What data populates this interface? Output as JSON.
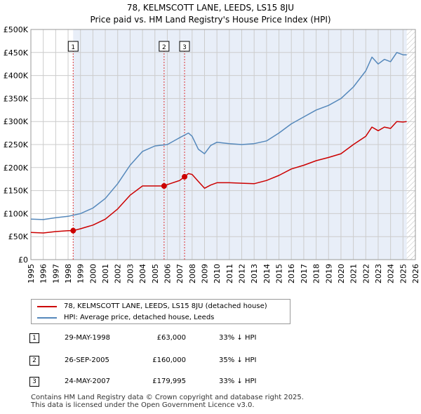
{
  "header": {
    "title": "78, KELMSCOTT LANE, LEEDS, LS15 8JU",
    "subtitle": "Price paid vs. HM Land Registry's House Price Index (HPI)"
  },
  "legend": {
    "property_label": "78, KELMSCOTT LANE, LEEDS, LS15 8JU (detached house)",
    "hpi_label": "HPI: Average price, detached house, Leeds"
  },
  "transactions": [
    {
      "num": "1",
      "date": "29-MAY-1998",
      "price": "£63,000",
      "diff": "33% ↓ HPI"
    },
    {
      "num": "2",
      "date": "26-SEP-2005",
      "price": "£160,000",
      "diff": "35% ↓ HPI"
    },
    {
      "num": "3",
      "date": "24-MAY-2007",
      "price": "£179,995",
      "diff": "33% ↓ HPI"
    }
  ],
  "footer": {
    "line1": "Contains HM Land Registry data © Crown copyright and database right 2025.",
    "line2": "This data is licensed under the Open Government Licence v3.0."
  },
  "colors": {
    "property": "#cc0000",
    "hpi": "#5588bb",
    "shade": "#e8eef8",
    "grid": "#cccccc",
    "marker_line": "#dd3333"
  },
  "chart_data": {
    "type": "line",
    "xlim": [
      1995,
      2026
    ],
    "ylim": [
      0,
      500000
    ],
    "x_ticks": [
      "1995",
      "1996",
      "1997",
      "1998",
      "1999",
      "2000",
      "2001",
      "2002",
      "2003",
      "2004",
      "2005",
      "2006",
      "2007",
      "2008",
      "2009",
      "2010",
      "2011",
      "2012",
      "2013",
      "2014",
      "2015",
      "2016",
      "2017",
      "2018",
      "2019",
      "2020",
      "2021",
      "2022",
      "2023",
      "2024",
      "2025",
      "2026"
    ],
    "y_ticks": [
      {
        "value": 0,
        "label": "£0"
      },
      {
        "value": 50000,
        "label": "£50K"
      },
      {
        "value": 100000,
        "label": "£100K"
      },
      {
        "value": 150000,
        "label": "£150K"
      },
      {
        "value": 200000,
        "label": "£200K"
      },
      {
        "value": 250000,
        "label": "£250K"
      },
      {
        "value": 300000,
        "label": "£300K"
      },
      {
        "value": 350000,
        "label": "£350K"
      },
      {
        "value": 400000,
        "label": "£400K"
      },
      {
        "value": 450000,
        "label": "£450K"
      },
      {
        "value": 500000,
        "label": "£500K"
      }
    ],
    "shaded_range": [
      1998.41,
      2025.3
    ],
    "hatched_from": 2025.3,
    "sales": [
      {
        "label": "1",
        "x": 1998.41,
        "y": 63000
      },
      {
        "label": "2",
        "x": 2005.74,
        "y": 160000
      },
      {
        "label": "3",
        "x": 2007.39,
        "y": 179995
      }
    ],
    "series": [
      {
        "name": "78, KELMSCOTT LANE, LEEDS, LS15 8JU (detached house)",
        "x": [
          1995,
          1996,
          1997,
          1998,
          1998.41,
          1999,
          2000,
          2001,
          2002,
          2003,
          2004,
          2005,
          2005.74,
          2006,
          2007,
          2007.39,
          2007.7,
          2008,
          2008.5,
          2009,
          2009.5,
          2010,
          2011,
          2012,
          2013,
          2014,
          2015,
          2016,
          2017,
          2018,
          2019,
          2020,
          2021,
          2022,
          2022.5,
          2023,
          2023.5,
          2024,
          2024.5,
          2025,
          2025.3
        ],
        "y": [
          59000,
          58000,
          61000,
          63000,
          63000,
          67000,
          75000,
          88000,
          110000,
          140000,
          160000,
          160000,
          160000,
          163000,
          172000,
          179995,
          187000,
          185000,
          170000,
          155000,
          162000,
          167000,
          167000,
          166000,
          165000,
          172000,
          183000,
          197000,
          205000,
          215000,
          222000,
          230000,
          250000,
          268000,
          288000,
          280000,
          288000,
          285000,
          300000,
          299000,
          300000
        ]
      },
      {
        "name": "HPI: Average price, detached house, Leeds",
        "x": [
          1995,
          1996,
          1997,
          1998,
          1999,
          2000,
          2001,
          2002,
          2003,
          2004,
          2005,
          2006,
          2007,
          2007.7,
          2008,
          2008.5,
          2009,
          2009.5,
          2010,
          2011,
          2012,
          2013,
          2014,
          2015,
          2016,
          2017,
          2018,
          2019,
          2020,
          2021,
          2022,
          2022.5,
          2023,
          2023.5,
          2024,
          2024.5,
          2025,
          2025.3
        ],
        "y": [
          88000,
          87000,
          91000,
          94000,
          100000,
          112000,
          133000,
          165000,
          205000,
          235000,
          247000,
          250000,
          265000,
          275000,
          268000,
          240000,
          230000,
          248000,
          255000,
          252000,
          250000,
          252000,
          258000,
          275000,
          295000,
          310000,
          325000,
          335000,
          350000,
          375000,
          410000,
          440000,
          425000,
          435000,
          430000,
          450000,
          445000,
          445000
        ]
      }
    ]
  }
}
